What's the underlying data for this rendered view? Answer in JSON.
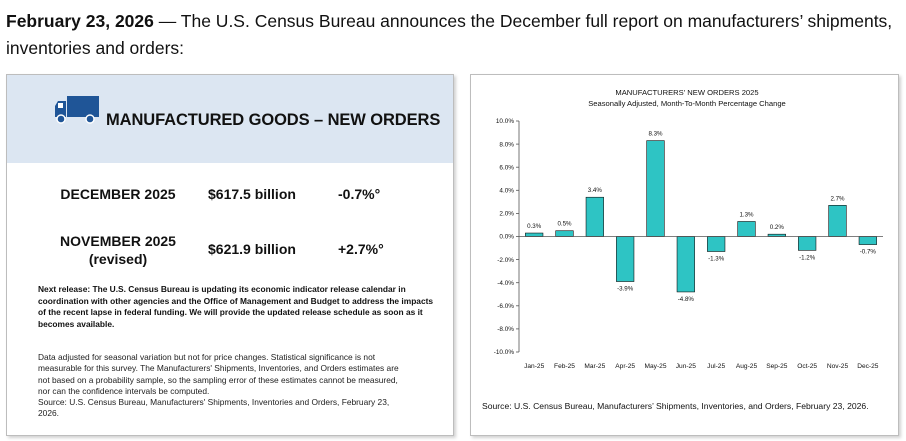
{
  "headline": {
    "date": "February 23, 2026",
    "text": " — The U.S. Census Bureau announces the December full report on manufacturers’ shipments, inventories and orders:"
  },
  "panel": {
    "title": "MANUFACTURED GOODS – NEW ORDERS",
    "icon": "truck-icon",
    "rows": [
      {
        "label": "DECEMBER 2025",
        "sublabel": "",
        "value": "$617.5 billion",
        "change": "-0.7%°"
      },
      {
        "label": "NOVEMBER 2025",
        "sublabel": "(revised)",
        "value": "$621.9 billion",
        "change": "+2.7%°"
      }
    ],
    "next_release": "Next release: The U.S. Census Bureau is updating its economic indicator release calendar in coordination with other agencies and the Office of Management and Budget to address the impacts of the recent lapse in federal funding.  We will provide the updated release schedule as soon as it becomes available.",
    "footnote_lines": [
      "Data adjusted for seasonal variation but not for price changes. Statistical significance is not",
      "measurable for this survey. The Manufacturers' Shipments, Inventories, and Orders estimates are",
      "not based on a probability sample, so the sampling error of these estimates cannot be measured,",
      "nor can the confidence intervals be computed.",
      "Source: U.S. Census Bureau, Manufacturers' Shipments, Inventories and Orders, February 23,",
      "2026."
    ],
    "colors": {
      "band": "#dce6f2",
      "truck": "#1f5597"
    }
  },
  "chart_data": {
    "type": "bar",
    "title": "MANUFACTURERS' NEW ORDERS 2025",
    "subtitle": "Seasonally Adjusted,  Month-To-Month Percentage Change",
    "categories": [
      "Jan-25",
      "Feb-25",
      "Mar-25",
      "Apr-25",
      "May-25",
      "Jun-25",
      "Jul-25",
      "Aug-25",
      "Sep-25",
      "Oct-25",
      "Nov-25",
      "Dec-25"
    ],
    "values": [
      0.3,
      0.5,
      3.4,
      -3.9,
      8.3,
      -4.8,
      -1.3,
      1.3,
      0.2,
      -1.2,
      2.7,
      -0.7
    ],
    "data_labels": [
      "0.3%",
      "0.5%",
      "3.4%",
      "-3.9%",
      "8.3%",
      "-4.8%",
      "-1.3%",
      "1.3%",
      "0.2%",
      "-1.2%",
      "2.7%",
      "-0.7%"
    ],
    "y_ticks": [
      "10.0%",
      "8.0%",
      "6.0%",
      "4.0%",
      "2.0%",
      "0.0%",
      "-2.0%",
      "-4.0%",
      "-6.0%",
      "-8.0%",
      "-10.0%"
    ],
    "ylim": [
      -10,
      10
    ],
    "grid": false,
    "bar_color": "#2ec4c4",
    "bar_edge_color": "#111111",
    "source": "Source: U.S. Census Bureau, Manufacturers’ Shipments, Inventories, and Orders, February 23, 2026."
  }
}
